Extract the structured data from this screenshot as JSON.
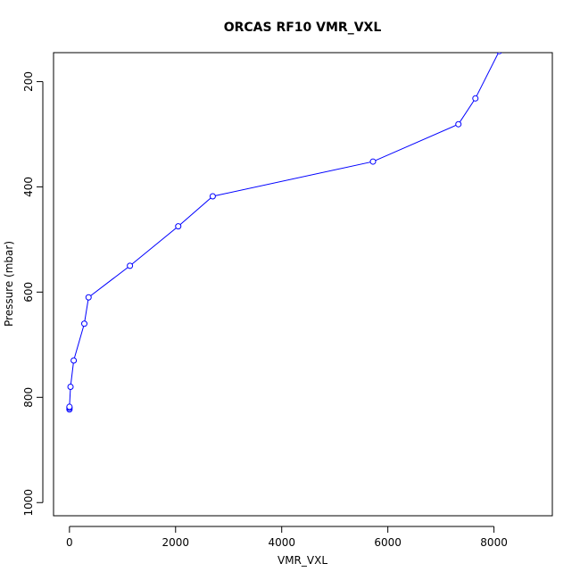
{
  "chart_data": {
    "type": "line",
    "title": "ORCAS RF10 VMR_VXL",
    "xlabel": "VMR_VXL",
    "ylabel": "Pressure (mbar)",
    "xlim": [
      -300,
      9100
    ],
    "ylim": [
      1025,
      145
    ],
    "y_reversed": true,
    "x_ticks": [
      0,
      2000,
      4000,
      6000,
      8000
    ],
    "y_ticks": [
      200,
      400,
      600,
      800,
      1000
    ],
    "grid": false,
    "series": [
      {
        "color": "#0000ff",
        "marker": "open-circle",
        "points": [
          {
            "x": 0,
            "y": 823
          },
          {
            "x": 0,
            "y": 820
          },
          {
            "x": 0,
            "y": 818
          },
          {
            "x": 20,
            "y": 780
          },
          {
            "x": 80,
            "y": 730
          },
          {
            "x": 280,
            "y": 660
          },
          {
            "x": 360,
            "y": 610
          },
          {
            "x": 1140,
            "y": 550
          },
          {
            "x": 2050,
            "y": 475
          },
          {
            "x": 2700,
            "y": 418
          },
          {
            "x": 5720,
            "y": 352
          },
          {
            "x": 7330,
            "y": 281
          },
          {
            "x": 7650,
            "y": 232
          },
          {
            "x": 8100,
            "y": 142
          }
        ]
      }
    ]
  }
}
